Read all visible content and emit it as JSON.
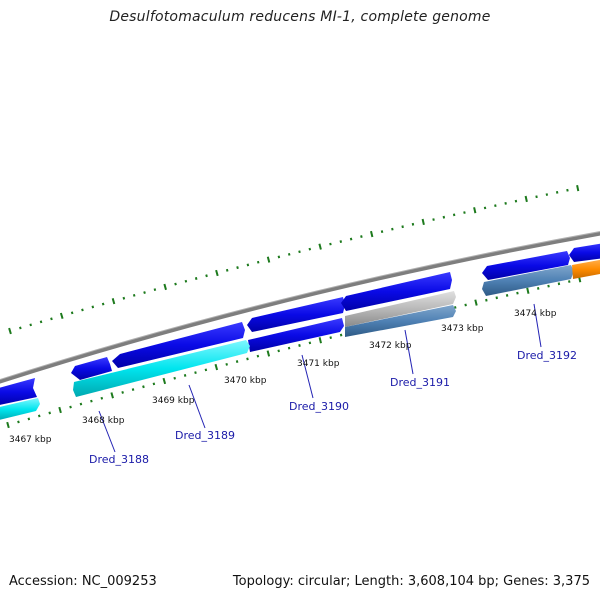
{
  "title": "Desulfotomaculum reducens MI-1, complete genome",
  "footer": {
    "accession": "Accession: NC_009253",
    "topology": "Topology: circular; Length: 3,608,104 bp; Genes: 3,375"
  },
  "colors": {
    "backbone": "#8c8c8c",
    "forward_gene": "#0a0ae6",
    "reverse_gene_cyan": "#00e5ee",
    "reverse_gene_steel": "#4f81b4",
    "reverse_gene_gray": "#b8b8b8",
    "reverse_gene_orange": "#ff8c00",
    "ticks": "#1d7a1d",
    "label_text": "#1a1aa8",
    "leader_line": "#2323b4"
  },
  "scale": {
    "tick_labels": [
      "3467 kbp",
      "3468 kbp",
      "3469 kbp",
      "3470 kbp",
      "3471 kbp",
      "3472 kbp",
      "3473 kbp",
      "3474 kbp"
    ]
  },
  "genes": [
    {
      "label": "Dred_3188"
    },
    {
      "label": "Dred_3189"
    },
    {
      "label": "Dred_3190"
    },
    {
      "label": "Dred_3191"
    },
    {
      "label": "Dred_3192"
    }
  ]
}
